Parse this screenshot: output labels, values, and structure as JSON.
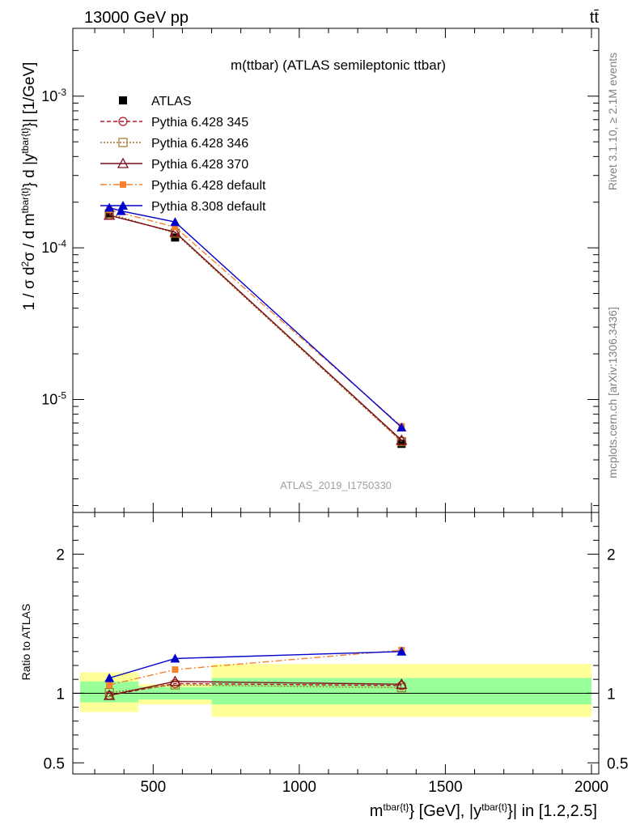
{
  "header": {
    "left": "13000 GeV pp",
    "right": "tt̄"
  },
  "side_labels": {
    "rivet": "Rivet 3.1.10, ≥ 2.1M events",
    "mcplots": "mcplots.cern.ch [arXiv:1306.3436]"
  },
  "colors": {
    "atlas": "#000000",
    "p345": "#b2182b",
    "p346": "#9c7a1e",
    "p370": "#7a0d1a",
    "p6def": "#f58231",
    "p8def": "#0000cc",
    "band_inner": "#99ff99",
    "band_outer": "#ffff99"
  },
  "chart_data": [
    {
      "type": "line",
      "panel": "main",
      "title": "m(ttbar) (ATLAS semileptonic ttbar)",
      "ylabel": "1 / σ d²σ / d m^{tbar{t}} d |y^{tbar{t}}| [1/GeV]",
      "yscale": "log",
      "ylim": [
        1.8e-06,
        0.0028
      ],
      "xlim": [
        225,
        2025
      ],
      "y_ticks": [
        "10^{-5}",
        "10^{-4}",
        "10^{-3}"
      ],
      "watermark": "ATLAS_2019_I1750330",
      "legend_position": "top-left",
      "series": [
        {
          "name": "ATLAS",
          "style": "data",
          "x": [
            350,
            575,
            1350
          ],
          "y": [
            0.000168,
            0.000117,
            5.1e-06
          ]
        },
        {
          "name": "Pythia 6.428 345",
          "style": "p345",
          "x": [
            350,
            575,
            1350
          ],
          "y": [
            0.000164,
            0.000127,
            5.33e-06
          ]
        },
        {
          "name": "Pythia 6.428 346",
          "style": "p346",
          "x": [
            350,
            575,
            1350
          ],
          "y": [
            0.000168,
            0.000125,
            5.27e-06
          ]
        },
        {
          "name": "Pythia 6.428 370",
          "style": "p370",
          "x": [
            350,
            575,
            1350
          ],
          "y": [
            0.000164,
            0.000127,
            5.39e-06
          ]
        },
        {
          "name": "Pythia 6.428 default",
          "style": "p6def",
          "x": [
            350,
            575,
            1350
          ],
          "y": [
            0.000178,
            0.000137,
            6.65e-06
          ]
        },
        {
          "name": "Pythia 8.308 default",
          "style": "p8def",
          "x": [
            350,
            390,
            575,
            1350
          ],
          "y": [
            0.000184,
            0.000175,
            0.000148,
            6.55e-06
          ]
        }
      ]
    },
    {
      "type": "line",
      "panel": "ratio",
      "ylabel": "Ratio to ATLAS",
      "ylim": [
        0.42,
        2.3
      ],
      "xlim": [
        225,
        2025
      ],
      "xlabel": "m^{tbar{t}} [GeV], |y^{tbar{t}}| in [1.2,2.5]",
      "x_ticks": [
        "500",
        "1000",
        "1500",
        "2000"
      ],
      "y_ticks": [
        "0.5",
        "1",
        "2"
      ],
      "bands": [
        {
          "x0": 250,
          "x1": 450,
          "inner": [
            0.935,
            1.085
          ],
          "outer": [
            0.865,
            1.15
          ]
        },
        {
          "x0": 450,
          "x1": 700,
          "inner": [
            0.955,
            1.045
          ],
          "outer": [
            0.92,
            1.065
          ]
        },
        {
          "x0": 700,
          "x1": 2000,
          "inner": [
            0.92,
            1.11
          ],
          "outer": [
            0.83,
            1.21
          ]
        }
      ],
      "series": [
        {
          "name": "Pythia 6.428 345",
          "style": "p345",
          "x": [
            350,
            575,
            1350
          ],
          "y": [
            0.985,
            1.07,
            1.055
          ]
        },
        {
          "name": "Pythia 6.428 346",
          "style": "p346",
          "x": [
            350,
            575,
            1350
          ],
          "y": [
            1.005,
            1.06,
            1.04
          ]
        },
        {
          "name": "Pythia 6.428 370",
          "style": "p370",
          "x": [
            350,
            575,
            1350
          ],
          "y": [
            0.985,
            1.085,
            1.065
          ]
        },
        {
          "name": "Pythia 6.428 default",
          "style": "p6def",
          "x": [
            350,
            575,
            1350
          ],
          "y": [
            1.06,
            1.17,
            1.31
          ]
        },
        {
          "name": "Pythia 8.308 default",
          "style": "p8def",
          "x": [
            350,
            575,
            1350
          ],
          "y": [
            1.11,
            1.25,
            1.3
          ]
        }
      ]
    }
  ]
}
